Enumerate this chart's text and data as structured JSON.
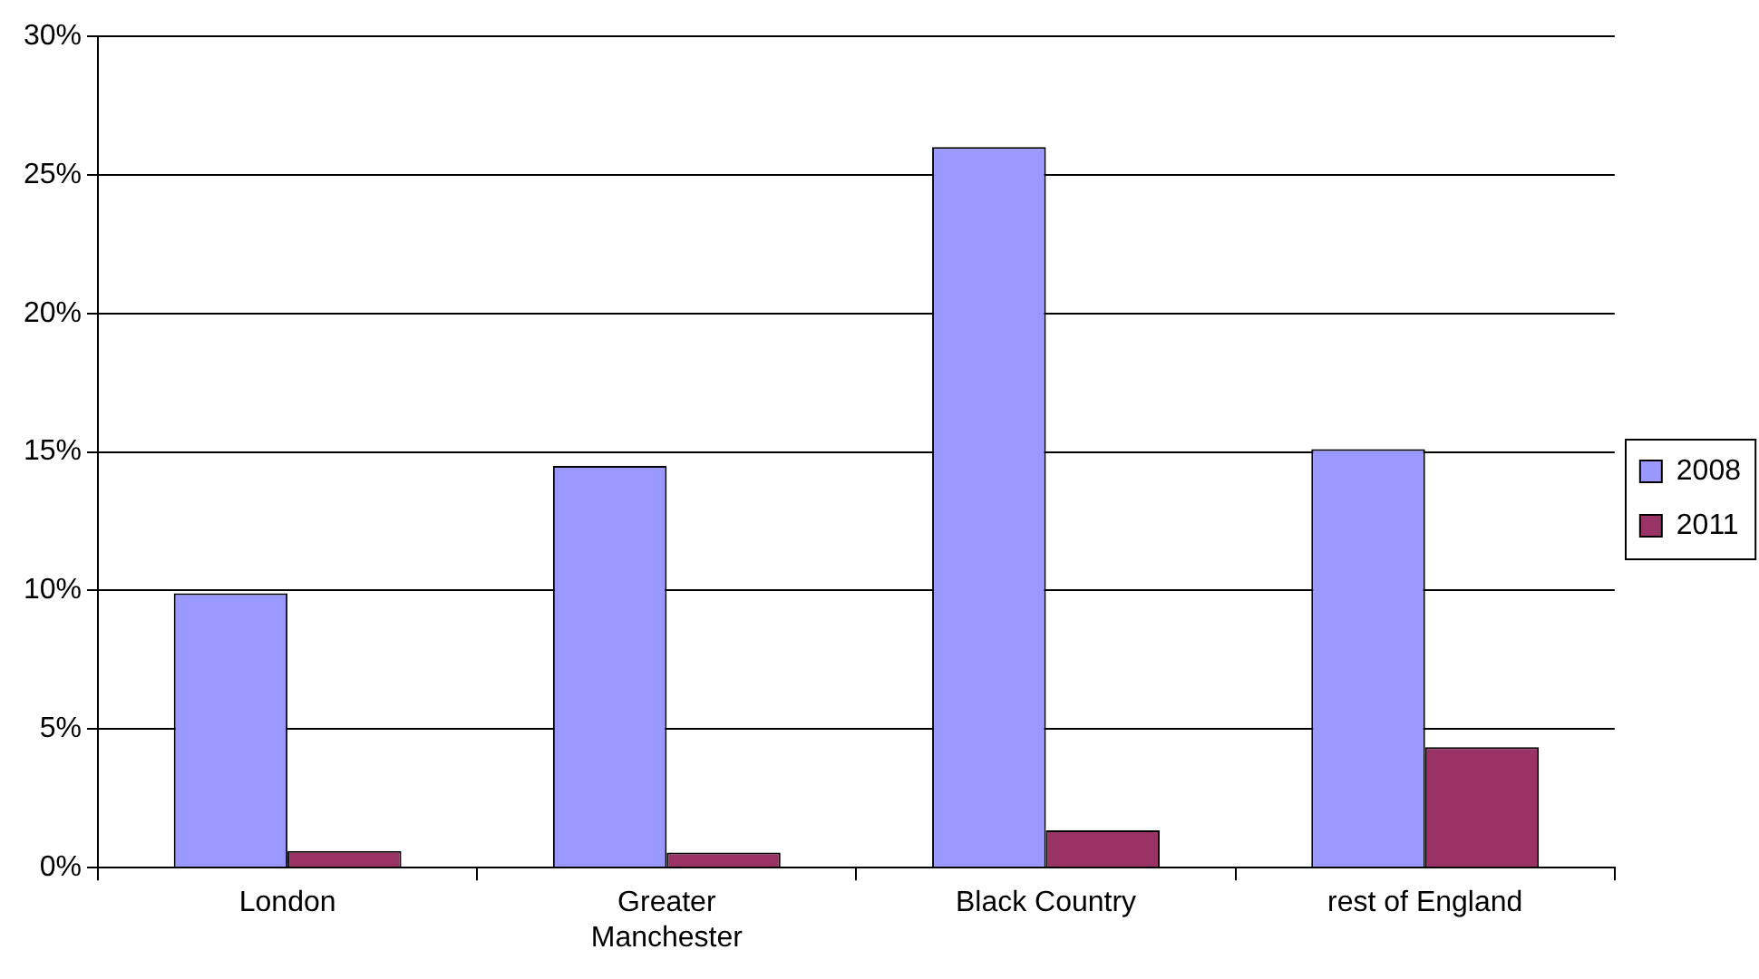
{
  "chart_data": {
    "type": "bar",
    "categories": [
      "London",
      "Greater Manchester",
      "Black Country",
      "rest of England"
    ],
    "series": [
      {
        "name": "2008",
        "color": "#9999ff",
        "values": [
          9.9,
          14.5,
          26.0,
          15.1
        ]
      },
      {
        "name": "2011",
        "color": "#993366",
        "values": [
          0.6,
          0.55,
          1.35,
          4.35
        ]
      }
    ],
    "ylim": [
      0,
      30
    ],
    "yticks": [
      {
        "value": 0,
        "label": "0%"
      },
      {
        "value": 5,
        "label": "5%"
      },
      {
        "value": 10,
        "label": "10%"
      },
      {
        "value": 15,
        "label": "15%"
      },
      {
        "value": 20,
        "label": "20%"
      },
      {
        "value": 25,
        "label": "25%"
      },
      {
        "value": 30,
        "label": "30%"
      }
    ],
    "grid": "y",
    "legend": "right"
  }
}
